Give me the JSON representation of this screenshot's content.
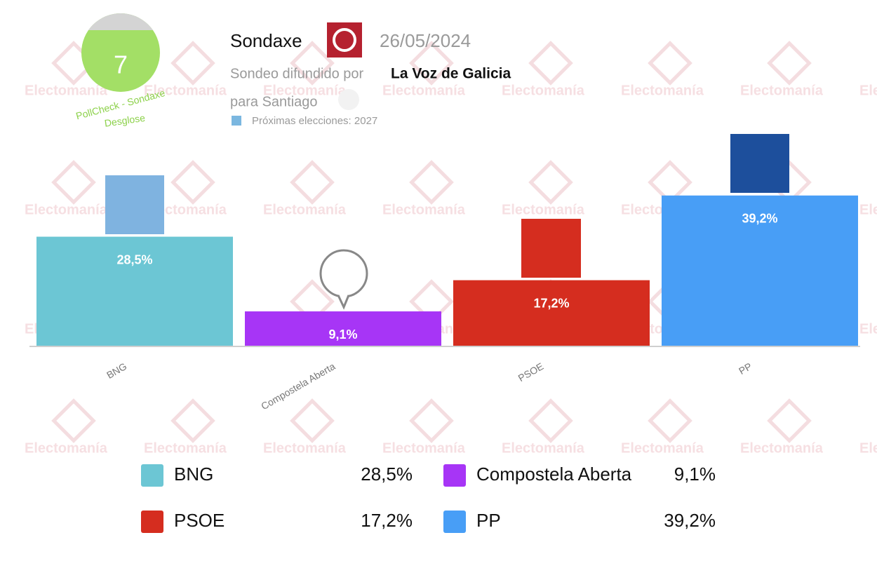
{
  "header": {
    "score": "7",
    "pollcheck": "PollCheck - Sondaxe",
    "breakdown": "Desglose",
    "pollster": "Sondaxe",
    "date": "26/05/2024",
    "published_by": "Sondeo difundido por",
    "media": "La Voz de Galicia",
    "place": "para Santiago",
    "next_election": "Próximas elecciones: 2027"
  },
  "watermark": "Electomanía",
  "chart_data": {
    "type": "bar",
    "categories": [
      "BNG",
      "Compostela Aberta",
      "PSOE",
      "PP"
    ],
    "values": [
      28.5,
      9.1,
      17.2,
      39.2
    ],
    "value_labels": [
      "28,5%",
      "9,1%",
      "17,2%",
      "39,2%"
    ],
    "colors": [
      "#6cc6d4",
      "#a735f6",
      "#d52d1f",
      "#489ef6"
    ]
  }
}
